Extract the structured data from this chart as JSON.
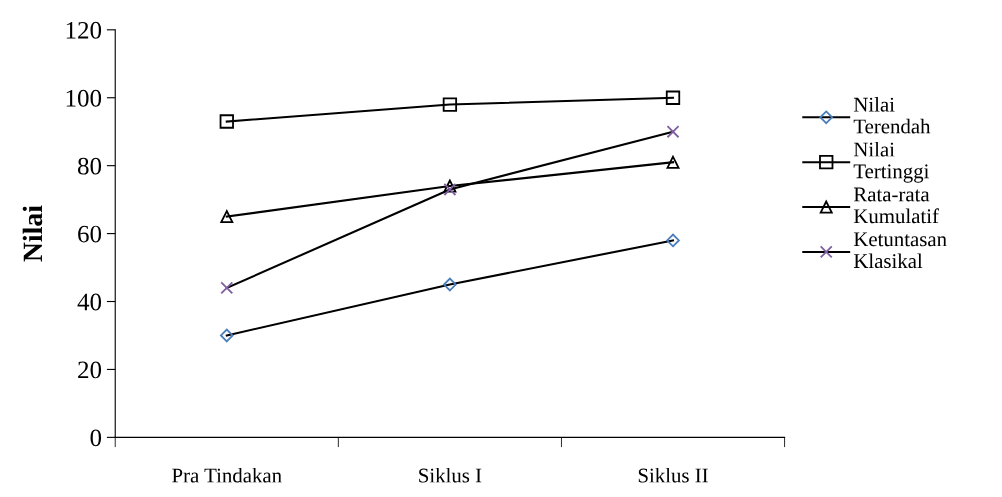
{
  "chart_data": {
    "type": "line",
    "ylabel": "Nilai",
    "categories": [
      "Pra Tindakan",
      "Siklus I",
      "Siklus II"
    ],
    "series": [
      {
        "name": "Nilai Terendah",
        "color": "#4a7ebb",
        "marker": "diamond",
        "values": [
          30,
          45,
          58
        ]
      },
      {
        "name": "Nilai Tertinggi",
        "color": "#000000",
        "marker": "square",
        "values": [
          93,
          98,
          100
        ]
      },
      {
        "name": "Rata-rata Kumulatif",
        "color": "#000000",
        "marker": "triangle",
        "values": [
          65,
          74,
          81
        ]
      },
      {
        "name": "Ketuntasan Klasikal",
        "color": "#7f5f9f",
        "marker": "cross",
        "values": [
          44,
          73,
          90
        ]
      }
    ],
    "ylim": [
      0,
      120
    ],
    "yticks": [
      0,
      20,
      40,
      60,
      80,
      100,
      120
    ],
    "grid": false,
    "legend": "right",
    "line_style": "solid"
  }
}
